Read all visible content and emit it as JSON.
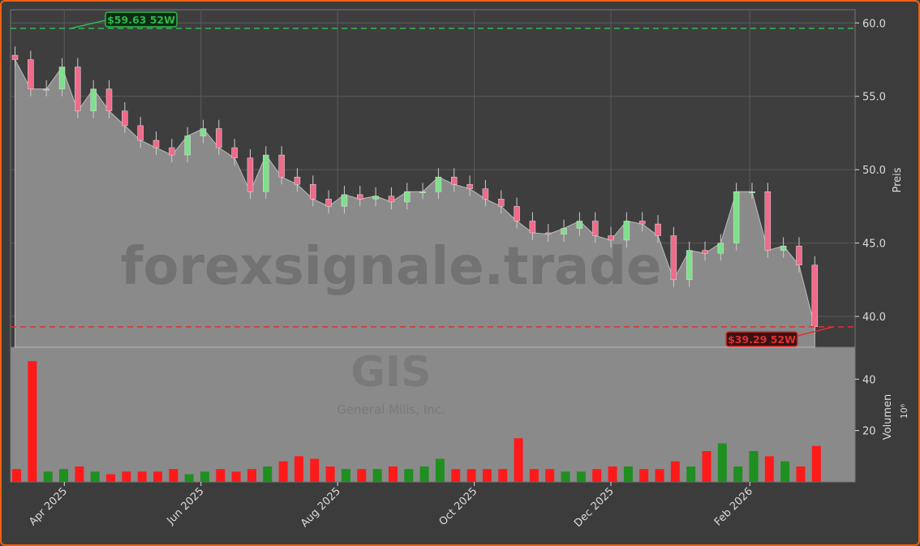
{
  "chart_data": {
    "type": "candlestick+area+bar",
    "watermark": "forexsignale.trade",
    "ticker": "GIS",
    "company": "General Mills, Inc.",
    "price_axis": {
      "label": "Preis",
      "ylim": [
        37.9,
        60.9
      ],
      "ticks": [
        "40.0",
        "45.0",
        "50.0",
        "55.0",
        "60.0"
      ],
      "tick_values": [
        40,
        45,
        50,
        55,
        60
      ]
    },
    "volume_axis": {
      "label": "Volumen",
      "unit": "10⁶",
      "ylim": [
        0,
        48
      ],
      "ticks": [
        "20",
        "40"
      ],
      "tick_values": [
        20,
        40
      ]
    },
    "x_ticks": [
      {
        "label": "Apr 2025",
        "date": "2025-04-01"
      },
      {
        "label": "Jun 2025",
        "date": "2025-06-01"
      },
      {
        "label": "Aug 2025",
        "date": "2025-08-01"
      },
      {
        "label": "Oct 2025",
        "date": "2025-10-01"
      },
      {
        "label": "Dec 2025",
        "date": "2025-12-01"
      },
      {
        "label": "Feb 2026",
        "date": "2026-02-01"
      }
    ],
    "start_date": "2025-03-10",
    "period": "weekly",
    "close": [
      57.5,
      55.5,
      55.5,
      57,
      54,
      55.5,
      54,
      53,
      52,
      51.5,
      51,
      52.3,
      52.8,
      51.5,
      50.8,
      48.5,
      51,
      49.5,
      49,
      48,
      47.5,
      48.3,
      48,
      48.2,
      47.8,
      48.5,
      48.5,
      49.5,
      49,
      48.7,
      48,
      47.5,
      46.5,
      45.7,
      45.6,
      46,
      46.5,
      45.5,
      45.2,
      46.5,
      46.3,
      45.5,
      42.5,
      44.5,
      44.3,
      45,
      48.5,
      48.5,
      44.5,
      44.8,
      43.5,
      39.3
    ],
    "volume": [
      5,
      47,
      4,
      5,
      6,
      4,
      3,
      4,
      4,
      4,
      5,
      3,
      4,
      5,
      4,
      5,
      6,
      8,
      10,
      9,
      6,
      5,
      5,
      5,
      6,
      5,
      6,
      9,
      5,
      5,
      5,
      5,
      17,
      5,
      5,
      4,
      4,
      5,
      6,
      6,
      5,
      5,
      8,
      6,
      12,
      15,
      6,
      12,
      10,
      8,
      6,
      14
    ],
    "annotations": [
      {
        "label": "$59.63 52W",
        "value": 59.63,
        "type": "52-week high",
        "color": "#2db84d"
      },
      {
        "label": "$39.29 52W",
        "value": 39.29,
        "type": "52-week low",
        "color": "#e03030"
      }
    ],
    "colors": {
      "up": "#7ee08a",
      "down": "#f06a8a",
      "vol_up": "#1f8f1f",
      "vol_down": "#ff1a1a",
      "area": "#8a8a8a"
    }
  }
}
